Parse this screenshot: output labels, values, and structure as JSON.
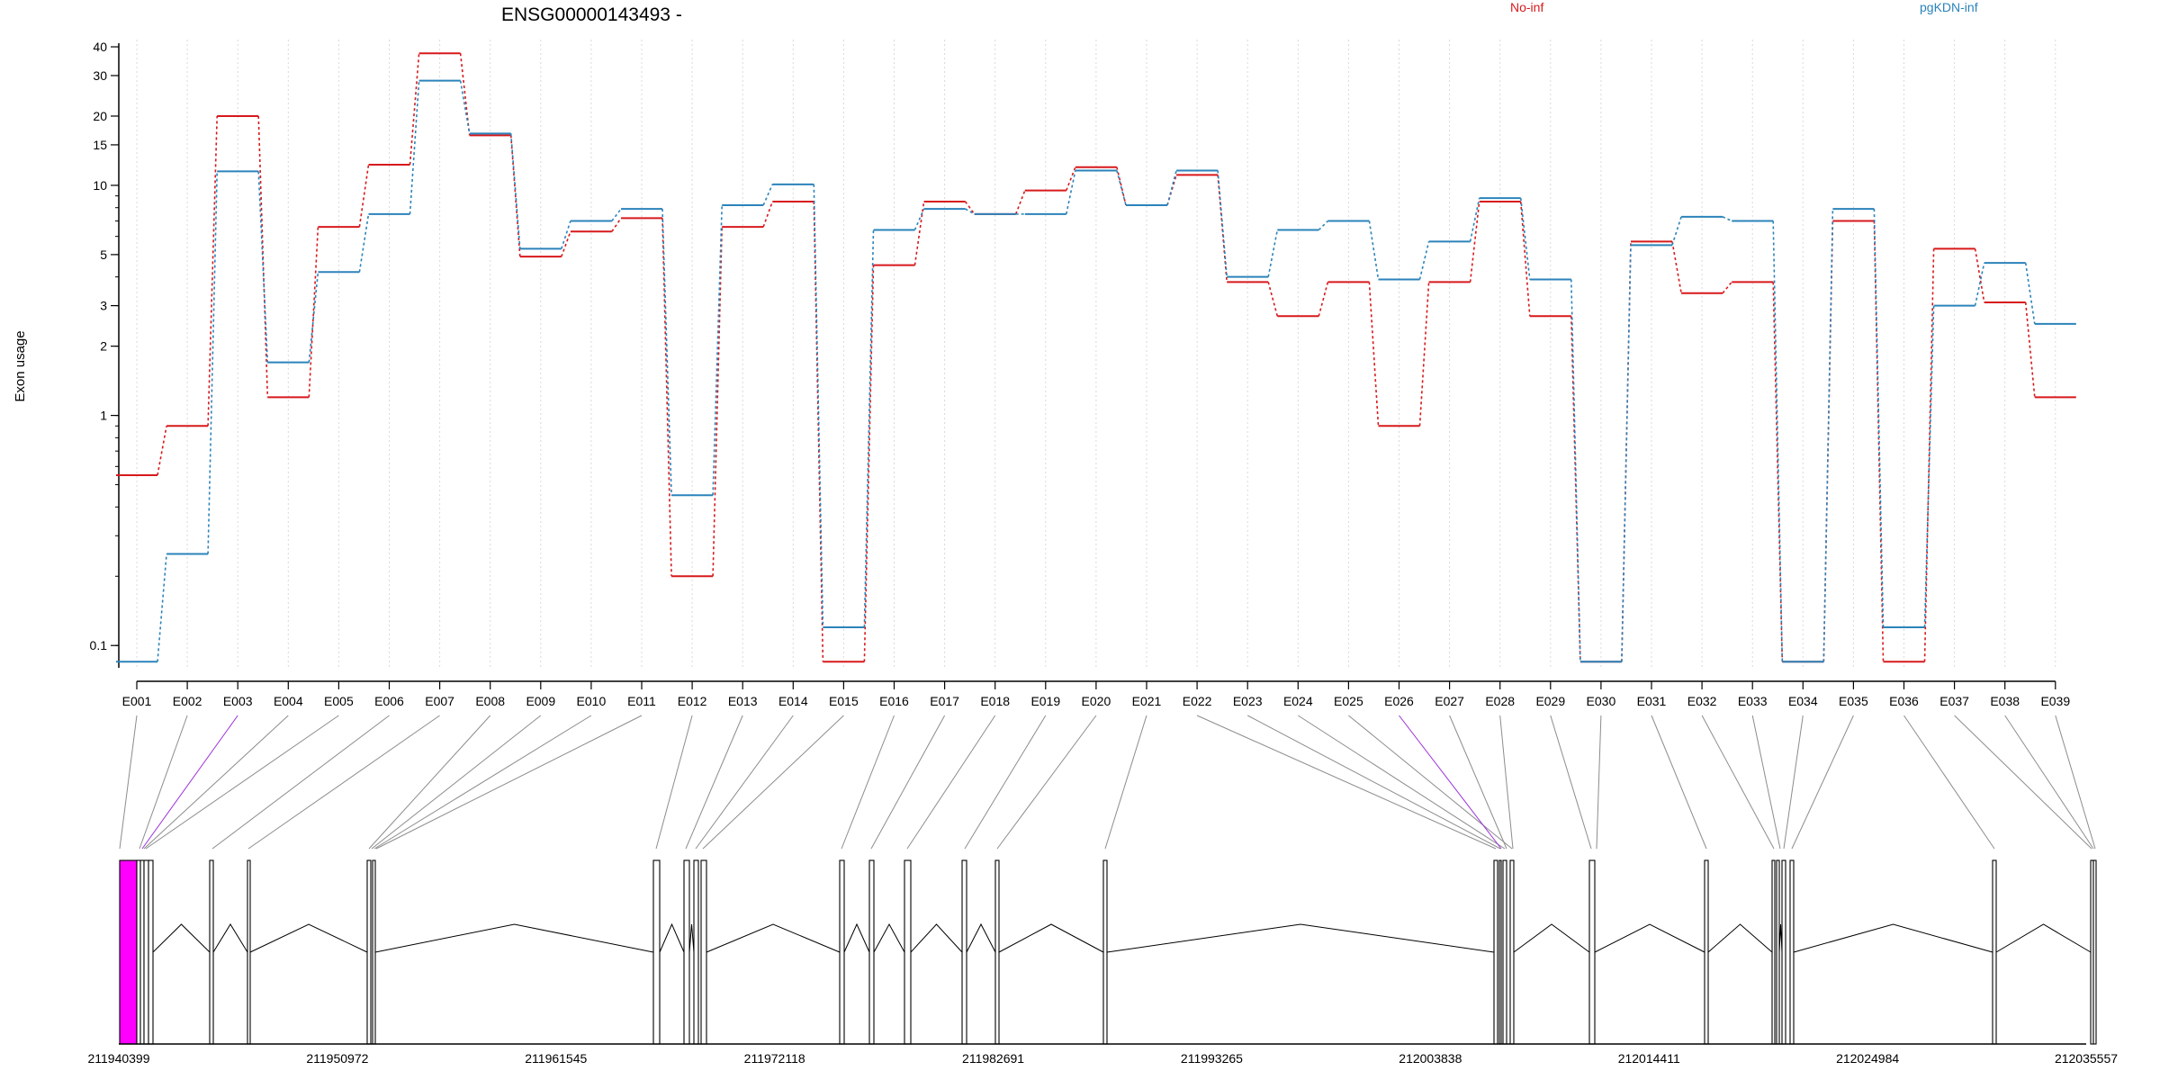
{
  "chart_data": {
    "type": "line",
    "title": "ENSG00000143493 -",
    "ylabel": "Exon usage",
    "xlabel": "",
    "y_scale": "log",
    "ylim": [
      0.08,
      43
    ],
    "y_ticks": [
      0.1,
      1,
      2,
      3,
      5,
      10,
      15,
      20,
      30,
      40
    ],
    "grid": "vertical dotted lines at each exon",
    "legend_position": "top-right",
    "categories": [
      "E001",
      "E002",
      "E003",
      "E004",
      "E005",
      "E006",
      "E007",
      "E008",
      "E009",
      "E010",
      "E011",
      "E012",
      "E013",
      "E014",
      "E015",
      "E016",
      "E017",
      "E018",
      "E019",
      "E020",
      "E021",
      "E022",
      "E023",
      "E024",
      "E025",
      "E026",
      "E027",
      "E028",
      "E029",
      "E030",
      "E031",
      "E032",
      "E033",
      "E034",
      "E035",
      "E036",
      "E037",
      "E038",
      "E039"
    ],
    "series": [
      {
        "name": "No-inf",
        "color": "#D7191C",
        "values": [
          0.55,
          0.9,
          20,
          1.2,
          6.6,
          12.3,
          37.5,
          16.5,
          4.9,
          6.3,
          7.2,
          0.2,
          6.6,
          8.5,
          0.085,
          4.5,
          8.5,
          7.5,
          9.5,
          12,
          8.2,
          11.1,
          3.8,
          2.7,
          3.8,
          0.9,
          3.8,
          8.5,
          2.7,
          0.085,
          5.7,
          3.4,
          3.8,
          0.085,
          7.0,
          0.085,
          5.3,
          3.1,
          1.2
        ]
      },
      {
        "name": "pgKDN-inf",
        "color": "#2B83BA",
        "values": [
          0.085,
          0.25,
          11.5,
          1.7,
          4.2,
          7.5,
          28.5,
          16.8,
          5.3,
          7.0,
          7.9,
          0.45,
          8.2,
          10.1,
          0.12,
          6.4,
          7.9,
          7.5,
          7.5,
          11.6,
          8.2,
          11.6,
          4.0,
          6.4,
          7.0,
          3.9,
          5.7,
          8.8,
          3.9,
          0.085,
          5.5,
          7.3,
          7.0,
          0.085,
          7.9,
          0.12,
          3.0,
          4.6,
          2.5
        ]
      }
    ],
    "gene_model": {
      "coordinate_labels": [
        "211940399",
        "211950972",
        "211961545",
        "211972118",
        "211982691",
        "211993265",
        "212003838",
        "212014411",
        "212024984",
        "212035557"
      ],
      "highlighted_color": "#FF00FF",
      "highlighted_exons": [
        "E003",
        "E026"
      ]
    }
  }
}
